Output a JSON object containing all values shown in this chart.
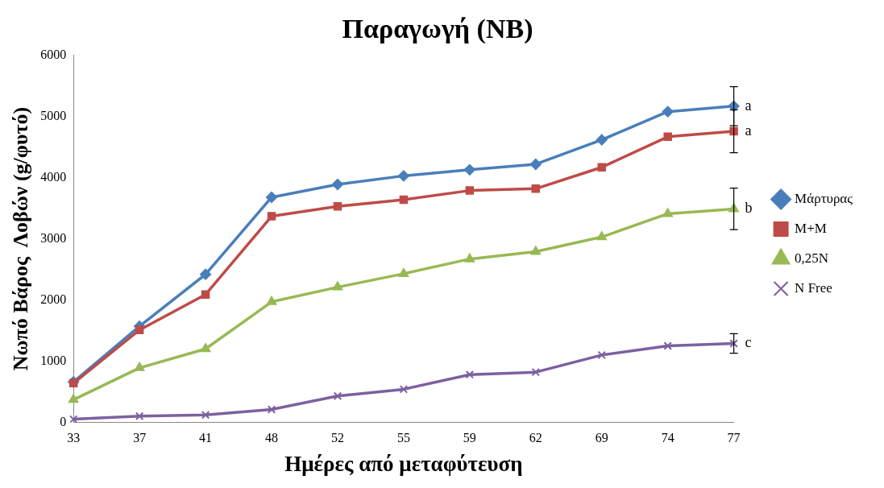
{
  "chart_data": {
    "type": "line",
    "title": "Παραγωγή (NB)",
    "xlabel": "Ημέρες από μεταφύτευση",
    "ylabel": "Νωπό Βάρος  Λοβών (g/φυτό)",
    "categories": [
      "33",
      "37",
      "41",
      "48",
      "52",
      "55",
      "59",
      "62",
      "69",
      "74",
      "77"
    ],
    "ylim": [
      0,
      6000
    ],
    "yticks": [
      0,
      1000,
      2000,
      3000,
      4000,
      5000,
      6000
    ],
    "grid": false,
    "legend": "right",
    "series": [
      {
        "name": "Μάρτυρας",
        "color": "#4a7ebb",
        "marker": "diamond",
        "values": [
          660,
          1570,
          2420,
          3680,
          3890,
          4030,
          4130,
          4220,
          4620,
          5080,
          5170
        ],
        "errors": [
          null,
          null,
          null,
          null,
          null,
          null,
          null,
          null,
          null,
          null,
          320
        ]
      },
      {
        "name": "M+M",
        "color": "#be4b48",
        "marker": "square",
        "values": [
          640,
          1510,
          2090,
          3370,
          3530,
          3640,
          3790,
          3820,
          4170,
          4670,
          4760
        ],
        "errors": [
          null,
          null,
          null,
          null,
          null,
          null,
          null,
          null,
          null,
          null,
          350
        ]
      },
      {
        "name": "0,25N",
        "color": "#98b954",
        "marker": "triangle",
        "values": [
          370,
          890,
          1200,
          1970,
          2210,
          2430,
          2670,
          2790,
          3030,
          3410,
          3490
        ],
        "errors": [
          null,
          null,
          null,
          null,
          null,
          null,
          null,
          null,
          null,
          null,
          340
        ]
      },
      {
        "name": "N Free",
        "color": "#7d60a0",
        "marker": "cross",
        "values": [
          50,
          100,
          120,
          210,
          430,
          540,
          780,
          820,
          1100,
          1250,
          1290
        ],
        "errors": [
          null,
          null,
          null,
          null,
          null,
          null,
          null,
          null,
          null,
          null,
          160
        ]
      }
    ],
    "annotations": [
      {
        "text": "a",
        "x": "77",
        "y": 5170
      },
      {
        "text": "a",
        "x": "77",
        "y": 4760
      },
      {
        "text": "b",
        "x": "77",
        "y": 3490
      },
      {
        "text": "c",
        "x": "77",
        "y": 1290
      }
    ]
  }
}
